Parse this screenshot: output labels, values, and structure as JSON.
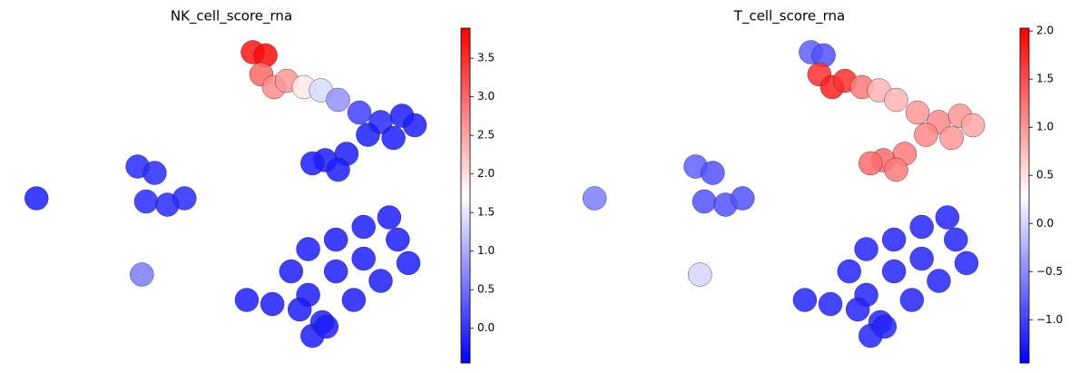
{
  "chart_data": [
    {
      "type": "scatter",
      "title": "NK_cell_score_rna",
      "colormap": "bwr",
      "xlim": [
        0,
        100
      ],
      "ylim": [
        0,
        100
      ],
      "clim": [
        -0.45,
        3.89
      ],
      "cticks": [
        {
          "value": 0,
          "label": "0.0"
        },
        0.5,
        {
          "value": 1,
          "label": "1.0"
        },
        1.5,
        {
          "value": 2,
          "label": "2.0"
        },
        2.5,
        {
          "value": 3,
          "label": "3.0"
        },
        3.5
      ],
      "x": [
        4.3,
        28,
        32,
        30,
        35,
        39,
        29,
        53.6,
        55,
        58,
        57,
        60,
        63,
        67,
        71,
        75,
        80,
        85,
        90,
        93,
        88,
        82,
        77,
        72,
        69,
        75,
        87,
        81,
        74.5,
        89,
        68,
        81,
        91.5,
        64,
        74.5,
        85,
        68,
        78.7,
        59.6,
        71.3,
        69,
        72.3,
        66
      ],
      "y": [
        49,
        59,
        57,
        48,
        47,
        49,
        25,
        17,
        95,
        94,
        88,
        84,
        86,
        84,
        83,
        80,
        76,
        73,
        75,
        72,
        68,
        69,
        63,
        61,
        60,
        58,
        43,
        40,
        36,
        36,
        33,
        30,
        28.6,
        26,
        26,
        23,
        18.6,
        17,
        15.7,
        10,
        5.7,
        8.6,
        14
      ],
      "values": [
        -0.2,
        -0.1,
        -0.1,
        -0.1,
        -0.1,
        -0.1,
        0.6,
        -0.2,
        3.7,
        3.8,
        3.0,
        2.7,
        2.6,
        1.9,
        1.4,
        0.8,
        0.1,
        -0.1,
        -0.2,
        -0.2,
        -0.2,
        -0.2,
        -0.2,
        -0.2,
        -0.2,
        -0.2,
        -0.2,
        -0.2,
        -0.2,
        -0.2,
        -0.2,
        -0.2,
        -0.2,
        -0.2,
        -0.2,
        -0.2,
        -0.2,
        -0.2,
        -0.2,
        -0.2,
        -0.2,
        -0.2,
        -0.2
      ]
    },
    {
      "type": "scatter",
      "title": "T_cell_score_rna",
      "colormap": "bwr",
      "xlim": [
        0,
        100
      ],
      "ylim": [
        0,
        100
      ],
      "clim": [
        -1.45,
        2.03
      ],
      "cticks": [
        {
          "value": -1,
          "label": "−1.0"
        },
        {
          "value": -0.5,
          "label": "−0.5"
        },
        {
          "value": 0,
          "label": "0.0"
        },
        0.5,
        {
          "value": 1,
          "label": "1.0"
        },
        1.5,
        {
          "value": 2,
          "label": "2.0"
        }
      ],
      "x": [
        4.3,
        28,
        32,
        30,
        35,
        39,
        29,
        53.6,
        55,
        58,
        57,
        60,
        63,
        67,
        71,
        75,
        80,
        85,
        90,
        93,
        88,
        82,
        77,
        72,
        69,
        75,
        87,
        81,
        74.5,
        89,
        68,
        81,
        91.5,
        64,
        74.5,
        85,
        68,
        78.7,
        59.6,
        71.3,
        69,
        72.3,
        66
      ],
      "y": [
        49,
        59,
        57,
        48,
        47,
        49,
        25,
        17,
        95,
        94,
        88,
        84,
        86,
        84,
        83,
        80,
        76,
        73,
        75,
        72,
        68,
        69,
        63,
        61,
        60,
        58,
        43,
        40,
        36,
        36,
        33,
        30,
        28.6,
        26,
        26,
        23,
        18.6,
        17,
        15.7,
        10,
        5.7,
        8.6,
        14
      ],
      "values": [
        -0.6,
        -0.8,
        -0.9,
        -0.9,
        -0.9,
        -0.9,
        0.0,
        -1.2,
        -0.8,
        -0.9,
        1.7,
        1.8,
        1.7,
        1.2,
        0.8,
        0.8,
        1.0,
        1.1,
        1.0,
        0.9,
        1.0,
        1.1,
        1.2,
        1.3,
        1.3,
        1.2,
        -1.2,
        -1.2,
        -1.2,
        -1.2,
        -1.2,
        -1.2,
        -1.2,
        -1.2,
        -1.2,
        -1.2,
        -1.2,
        -1.2,
        -1.2,
        -1.2,
        -1.2,
        -1.2,
        -1.2
      ]
    }
  ]
}
